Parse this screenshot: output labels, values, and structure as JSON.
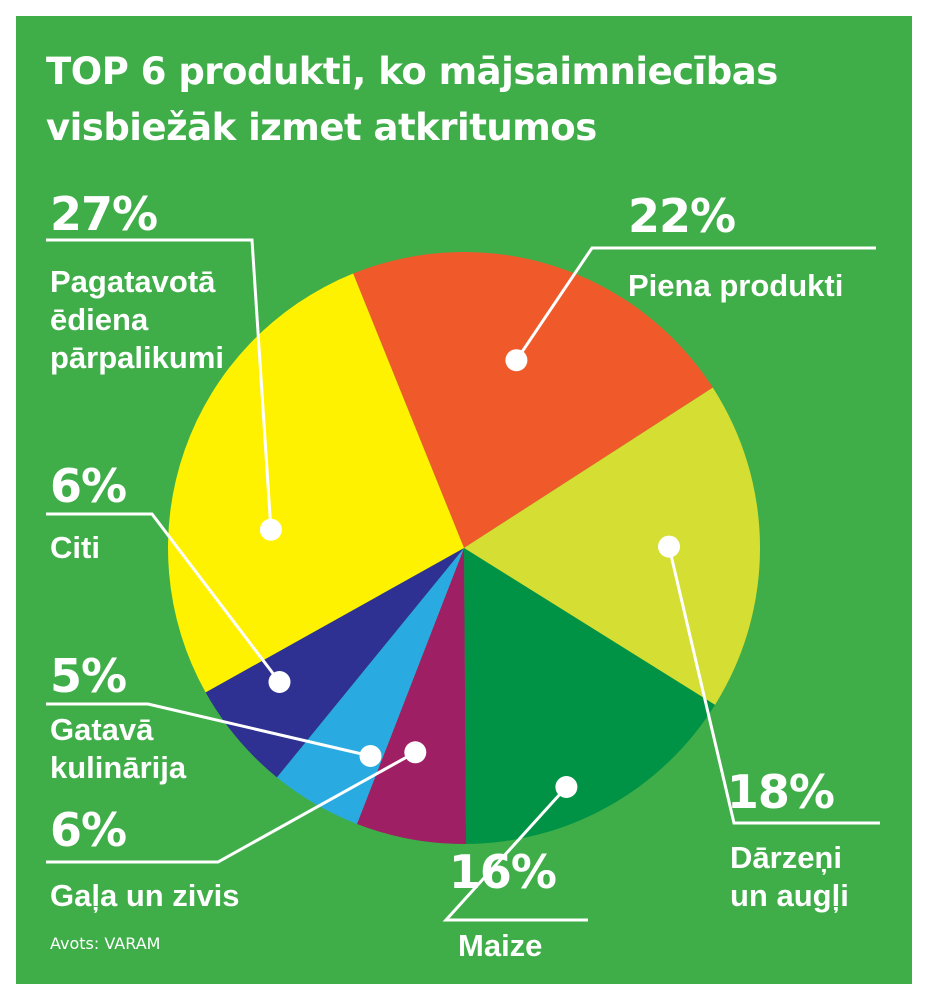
{
  "header": {
    "title_line1": "TOP 6 produkti, ko mājsaimniecības",
    "title_line2": "visbiežāk izmet atkritumos"
  },
  "source": {
    "label": "Avots:",
    "value": "VARAM"
  },
  "colors": {
    "background": "#3fae49",
    "callout": "#ffffff"
  },
  "chart_data": {
    "type": "pie",
    "start_angle_deg": -22,
    "direction": "clockwise",
    "slices": [
      {
        "label": "Piena produkti",
        "value": 22,
        "value_label": "22%",
        "color": "#f05a2a"
      },
      {
        "label": "Dārzeņi un augļi",
        "value": 18,
        "value_label": "18%",
        "color": "#d5de32"
      },
      {
        "label": "Maize",
        "value": 16,
        "value_label": "16%",
        "color": "#009245"
      },
      {
        "label": "Gaļa un zivis",
        "value": 6,
        "value_label": "6%",
        "color": "#9e1f63"
      },
      {
        "label": "Gatavā kulinārija",
        "value": 5,
        "value_label": "5%",
        "color": "#29abe2"
      },
      {
        "label": "Citi",
        "value": 6,
        "value_label": "6%",
        "color": "#2e3192"
      },
      {
        "label": "Pagatavotā ēdiena pārpalikumi",
        "value": 27,
        "value_label": "27%",
        "color": "#fff200"
      }
    ]
  }
}
